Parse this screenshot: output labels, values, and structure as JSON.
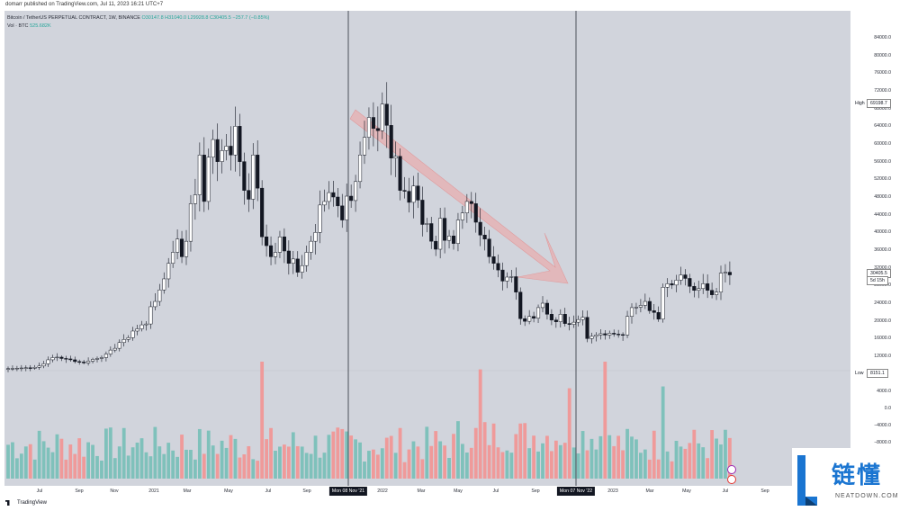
{
  "header": {
    "published": "domarr published on TradingView.com, Jul 11, 2023 16:21 UTC+7"
  },
  "legend": {
    "symbol": "Bitcoin / TetherUS PERPETUAL CONTRACT, 1W, BINANCE",
    "ohlc": "O30147.8 H31040.0 L29928.8 C30405.5 −257.7 (−0.85%)",
    "volume_label": "Vol · BTC",
    "volume_value": "525.682K"
  },
  "y_axis": {
    "price_ticks": [
      "84000.0",
      "80000.0",
      "76000.0",
      "72000.0",
      "68000.0",
      "64000.0",
      "60000.0",
      "56000.0",
      "52000.0",
      "48000.0",
      "44000.0",
      "40000.0",
      "36000.0",
      "32000.0",
      "28000.0",
      "24000.0",
      "20000.0",
      "16000.0",
      "12000.0"
    ],
    "volume_ticks": [
      "4000.0",
      "0.0",
      "−4000.0",
      "−8000.0"
    ],
    "high_label": "High",
    "high_value": "69198.7",
    "low_label": "Low",
    "low_value": "8151.1",
    "last_price": "30405.5",
    "countdown": "5d 15h"
  },
  "x_axis": {
    "ticks": [
      "Jul",
      "Sep",
      "Nov",
      "2021",
      "Mar",
      "May",
      "Jul",
      "Sep",
      "2022",
      "Mar",
      "May",
      "Jul",
      "Sep",
      "2023",
      "Mar",
      "May",
      "Jul",
      "Sep"
    ],
    "marker_1": "Mon 08 Nov '21",
    "marker_2": "Mon 07 Nov '22"
  },
  "footer": {
    "brand": "TradingView"
  },
  "watermark": {
    "title": "链懂",
    "subtitle": "NEATDOWN.COM"
  },
  "colors": {
    "up": "#ffffff",
    "down": "#131722",
    "vol_up": "#7fc1bb",
    "vol_down": "#ef9a9a",
    "arrow": "#f0a0a0"
  },
  "chart_data": {
    "type": "candlestick",
    "timeframe": "1W",
    "price": [
      9200,
      9250,
      9300,
      9350,
      9400,
      9300,
      9500,
      9800,
      10300,
      11200,
      11700,
      11800,
      11500,
      11400,
      11200,
      10800,
      10700,
      10500,
      10900,
      11300,
      11500,
      11700,
      12500,
      13400,
      13800,
      15100,
      15800,
      16200,
      17700,
      18200,
      19100,
      19300,
      23200,
      24400,
      27000,
      29500,
      33000,
      35500,
      38500,
      34500,
      38000,
      46500,
      48500,
      57500,
      47000,
      57000,
      61000,
      56000,
      58500,
      59500,
      57500,
      64000,
      56000,
      49500,
      47500,
      57500,
      50000,
      39000,
      37000,
      34500,
      35500,
      39000,
      35800,
      33000,
      34000,
      31000,
      32500,
      35500,
      38000,
      40000,
      46200,
      47000,
      49000,
      48000,
      46000,
      42800,
      48200,
      47200,
      51500,
      57500,
      61500,
      66000,
      63500,
      63000,
      69000,
      64200,
      56800,
      57200,
      49500,
      49300,
      46800,
      50500,
      47300,
      41800,
      42000,
      38000,
      36200,
      43200,
      38200,
      39200,
      37500,
      42800,
      44400,
      47000,
      46500,
      42300,
      39400,
      38500,
      34500,
      33000,
      31500,
      29000,
      29900,
      30000,
      26500,
      20500,
      19900,
      21000,
      20600,
      23000,
      24000,
      21500,
      20200,
      19800,
      21500,
      19400,
      19200,
      19700,
      20300,
      20800,
      16000,
      16500,
      16800,
      17100,
      16800,
      17200,
      17000,
      16900,
      16800,
      21000,
      23000,
      23100,
      23500,
      24400,
      22300,
      21900,
      20400,
      27600,
      28400,
      28100,
      29200,
      30400,
      29600,
      27800,
      26900,
      27300,
      28400,
      26900,
      25900,
      26500,
      30800,
      31000,
      30400
    ]
  }
}
